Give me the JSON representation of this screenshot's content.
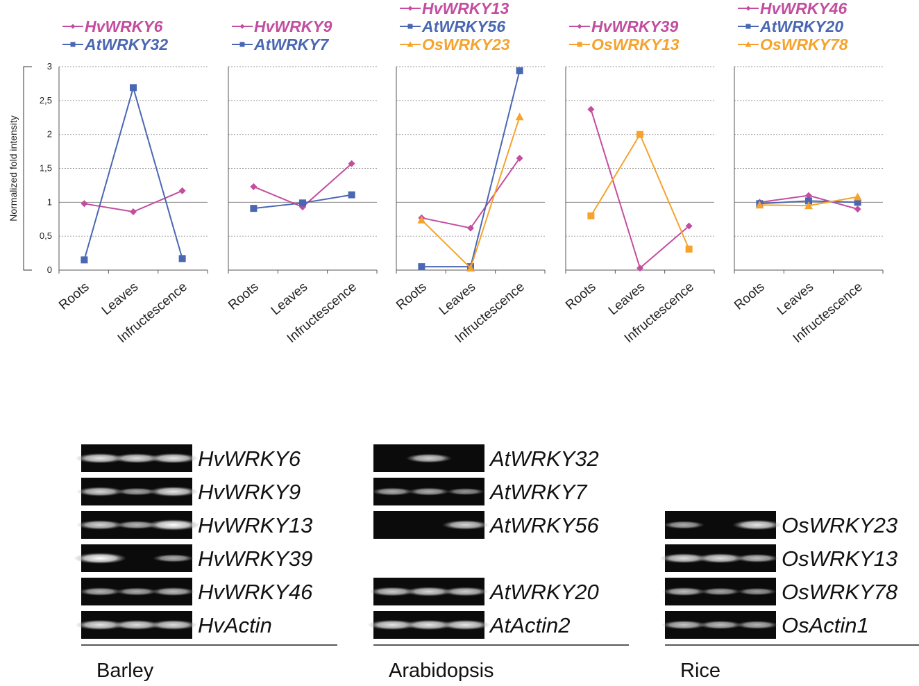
{
  "chart_data": [
    {
      "type": "line",
      "ylabel": "Normalized fold intensity",
      "ylim": [
        0,
        3
      ],
      "yticks": [
        "0",
        "0,5",
        "1",
        "1,5",
        "2",
        "2,5",
        "3"
      ],
      "categories": [
        "Roots",
        "Leaves",
        "Infructescence"
      ],
      "series": [
        {
          "name": "HvWRKY6",
          "color": "#c34d9f",
          "marker": "diamond",
          "values": [
            0.98,
            0.86,
            1.17
          ]
        },
        {
          "name": "AtWRKY32",
          "color": "#4a67b3",
          "marker": "square",
          "values": [
            0.15,
            2.69,
            0.17
          ]
        }
      ]
    },
    {
      "type": "line",
      "ylim": [
        0,
        3
      ],
      "categories": [
        "Roots",
        "Leaves",
        "Infructescence"
      ],
      "series": [
        {
          "name": "HvWRKY9",
          "color": "#c34d9f",
          "marker": "diamond",
          "values": [
            1.23,
            0.93,
            1.57
          ]
        },
        {
          "name": "AtWRKY7",
          "color": "#4a67b3",
          "marker": "square",
          "values": [
            0.91,
            0.99,
            1.11
          ]
        }
      ]
    },
    {
      "type": "line",
      "ylim": [
        0,
        3
      ],
      "categories": [
        "Roots",
        "Leaves",
        "Infructescence"
      ],
      "series": [
        {
          "name": "HvWRKY13",
          "color": "#c34d9f",
          "marker": "diamond",
          "values": [
            0.77,
            0.62,
            1.65
          ]
        },
        {
          "name": "AtWRKY56",
          "color": "#4a67b3",
          "marker": "square",
          "values": [
            0.05,
            0.05,
            2.94
          ]
        },
        {
          "name": "OsWRKY23",
          "color": "#f5a32c",
          "marker": "triangle",
          "values": [
            0.74,
            0.03,
            2.26
          ]
        }
      ]
    },
    {
      "type": "line",
      "ylim": [
        0,
        3
      ],
      "categories": [
        "Roots",
        "Leaves",
        "Infructescence"
      ],
      "series": [
        {
          "name": "HvWRKY39",
          "color": "#c34d9f",
          "marker": "diamond",
          "values": [
            2.37,
            0.03,
            0.65
          ]
        },
        {
          "name": "OsWRKY13",
          "color": "#f5a32c",
          "marker": "square",
          "values": [
            0.8,
            2.0,
            0.31
          ]
        }
      ]
    },
    {
      "type": "line",
      "ylim": [
        0,
        3
      ],
      "categories": [
        "Roots",
        "Leaves",
        "Infructescence"
      ],
      "series": [
        {
          "name": "HvWRKY46",
          "color": "#c34d9f",
          "marker": "diamond",
          "values": [
            1.0,
            1.1,
            0.9
          ]
        },
        {
          "name": "AtWRKY20",
          "color": "#4a67b3",
          "marker": "square",
          "values": [
            0.98,
            1.02,
            1.0
          ]
        },
        {
          "name": "OsWRKY78",
          "color": "#f5a32c",
          "marker": "triangle",
          "values": [
            0.96,
            0.95,
            1.08
          ]
        }
      ]
    }
  ],
  "gels": [
    {
      "species": "Barley",
      "rows": [
        {
          "label": "HvWRKY6",
          "bands": [
            0.85,
            0.8,
            0.85
          ]
        },
        {
          "label": "HvWRKY9",
          "bands": [
            0.75,
            0.45,
            0.85
          ]
        },
        {
          "label": "HvWRKY13",
          "bands": [
            0.75,
            0.55,
            1.0
          ]
        },
        {
          "label": "HvWRKY39",
          "bands": [
            1.0,
            0.0,
            0.5
          ]
        },
        {
          "label": "HvWRKY46",
          "bands": [
            0.55,
            0.5,
            0.6
          ]
        },
        {
          "label": "HvActin",
          "bands": [
            0.85,
            0.8,
            0.8
          ]
        }
      ]
    },
    {
      "species": "Arabidopsis",
      "rows": [
        {
          "label": "AtWRKY32",
          "bands": [
            0.0,
            0.7,
            0.0
          ]
        },
        {
          "label": "AtWRKY7",
          "bands": [
            0.5,
            0.5,
            0.35
          ]
        },
        {
          "label": "AtWRKY56",
          "bands": [
            0.0,
            0.0,
            0.75
          ]
        },
        {
          "label": "",
          "bands": []
        },
        {
          "label": "AtWRKY20",
          "bands": [
            0.7,
            0.75,
            0.7
          ]
        },
        {
          "label": "AtActin2",
          "bands": [
            0.85,
            0.85,
            0.85
          ]
        }
      ]
    },
    {
      "species": "Rice",
      "rows": [
        {
          "label": "",
          "bands": []
        },
        {
          "label": "",
          "bands": []
        },
        {
          "label": "OsWRKY23",
          "bands": [
            0.5,
            0.0,
            0.85
          ]
        },
        {
          "label": "OsWRKY13",
          "bands": [
            0.8,
            0.8,
            0.6
          ]
        },
        {
          "label": "OsWRKY78",
          "bands": [
            0.6,
            0.45,
            0.4
          ]
        },
        {
          "label": "OsActin1",
          "bands": [
            0.65,
            0.6,
            0.55
          ]
        }
      ]
    }
  ]
}
